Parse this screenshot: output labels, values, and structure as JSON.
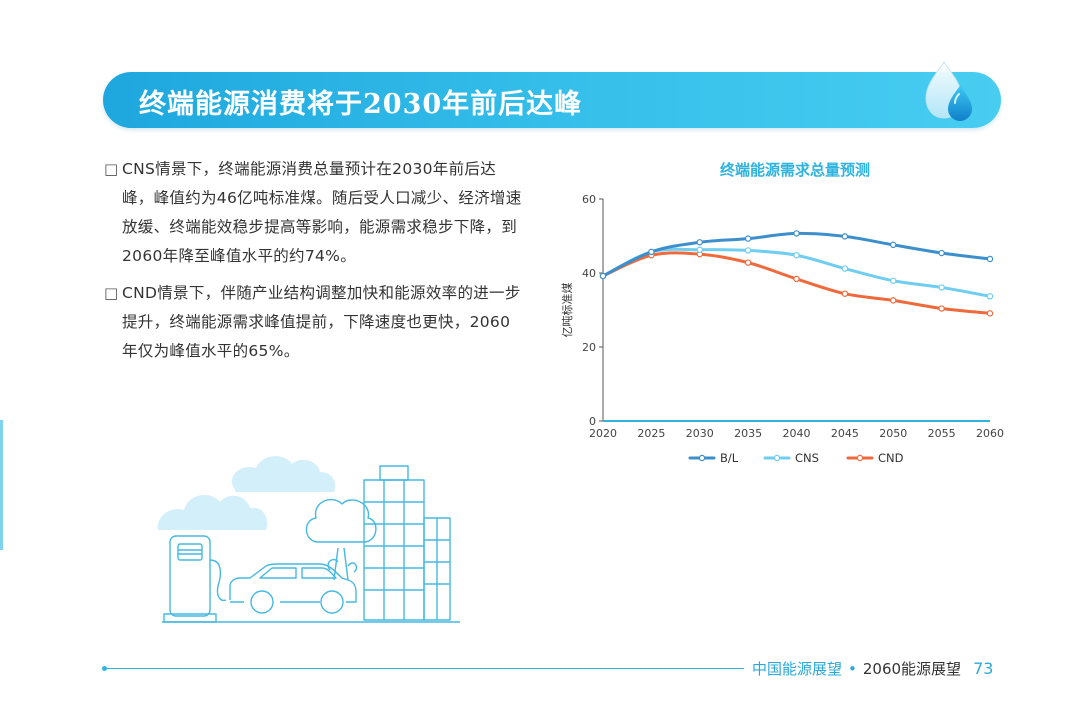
{
  "banner": {
    "title": "终端能源消费将于2030年前后达峰"
  },
  "bullets": [
    {
      "marker": "□",
      "text": "CNS情景下，终端能源消费总量预计在2030年前后达峰，峰值约为46亿吨标准煤。随后受人口减少、经济增速放缓、终端能效稳步提高等影响，能源需求稳步下降，到2060年降至峰值水平的约74%。"
    },
    {
      "marker": "□",
      "text": "CND情景下，伴随产业结构调整加快和能源效率的进一步提升，终端能源需求峰值提前，下降速度也更快，2060年仅为峰值水平的65%。"
    }
  ],
  "chart_data": {
    "type": "line",
    "title": "终端能源需求总量预测",
    "ylabel": "亿吨标准煤",
    "xlabel": "",
    "x": [
      2020,
      2025,
      2030,
      2035,
      2040,
      2045,
      2050,
      2055,
      2060
    ],
    "ylim": [
      0,
      60
    ],
    "yticks": [
      0,
      20,
      40,
      60
    ],
    "grid": false,
    "legend_position": "bottom",
    "series": [
      {
        "name": "B/L",
        "color": "#3c8fcb",
        "values": [
          39.2,
          45.7,
          48.3,
          49.3,
          50.7,
          49.9,
          47.6,
          45.4,
          43.8
        ]
      },
      {
        "name": "CNS",
        "color": "#6fcdf0",
        "values": [
          39.2,
          45.7,
          46.3,
          46.1,
          44.8,
          41.2,
          37.9,
          36.1,
          33.7
        ]
      },
      {
        "name": "CND",
        "color": "#ee6a3c",
        "values": [
          39.2,
          44.8,
          45.1,
          42.8,
          38.4,
          34.4,
          32.6,
          30.4,
          29.1
        ]
      }
    ]
  },
  "footer": {
    "left": "中国能源展望",
    "sep": "•",
    "right": "2060能源展望",
    "page": "73"
  },
  "colors": {
    "accent": "#2fb3df",
    "banner": "#2aaee2"
  }
}
